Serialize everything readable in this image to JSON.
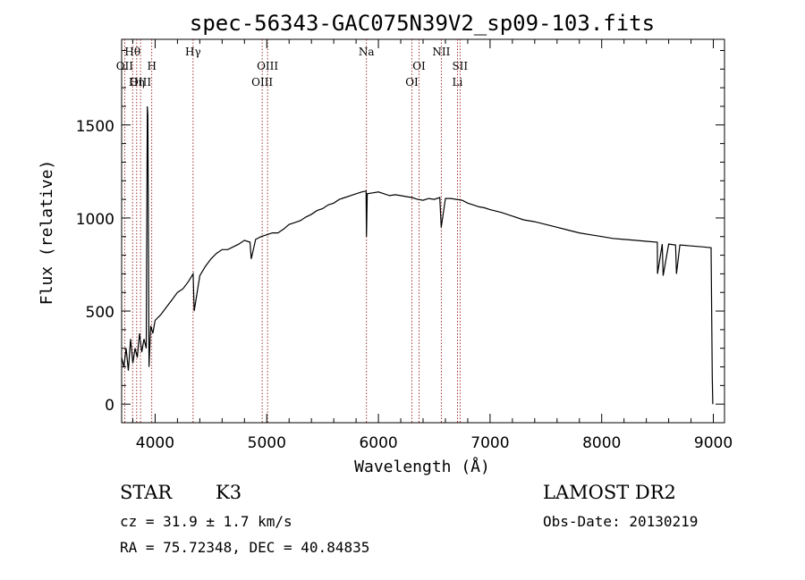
{
  "chart_data": {
    "type": "line",
    "title": "spec-56343-GAC075N39V2_sp09-103.fits",
    "xlabel": "Wavelength (Å)",
    "ylabel": "Flux (relative)",
    "xlim": [
      3700,
      9100
    ],
    "ylim": [
      -100,
      1960
    ],
    "x_ticks": [
      4000,
      5000,
      6000,
      7000,
      8000,
      9000
    ],
    "y_ticks": [
      0,
      500,
      1000,
      1500
    ],
    "grid": false,
    "series": [
      {
        "x": [
          3700,
          3720,
          3740,
          3760,
          3780,
          3800,
          3820,
          3840,
          3860,
          3880,
          3900,
          3920,
          3930,
          3935,
          3945,
          3960,
          3980,
          4000,
          4050,
          4100,
          4150,
          4200,
          4250,
          4300,
          4340,
          4350,
          4400,
          4450,
          4500,
          4550,
          4600,
          4650,
          4700,
          4750,
          4800,
          4850,
          4861,
          4900,
          4950,
          5000,
          5050,
          5100,
          5150,
          5200,
          5250,
          5300,
          5350,
          5400,
          5450,
          5500,
          5550,
          5600,
          5650,
          5700,
          5750,
          5800,
          5850,
          5890,
          5893,
          5900,
          5950,
          6000,
          6050,
          6100,
          6150,
          6200,
          6250,
          6300,
          6350,
          6400,
          6450,
          6500,
          6550,
          6563,
          6600,
          6650,
          6700,
          6750,
          6800,
          6850,
          6900,
          6950,
          7000,
          7100,
          7200,
          7300,
          7400,
          7500,
          7600,
          7700,
          7800,
          7900,
          8000,
          8100,
          8200,
          8300,
          8400,
          8498,
          8500,
          8542,
          8550,
          8600,
          8662,
          8670,
          8700,
          8800,
          8900,
          8980,
          8990,
          8995
        ],
        "y": [
          250,
          200,
          300,
          180,
          350,
          220,
          300,
          250,
          380,
          280,
          350,
          300,
          1600,
          1550,
          200,
          420,
          380,
          450,
          480,
          520,
          560,
          600,
          620,
          660,
          700,
          500,
          690,
          740,
          780,
          810,
          830,
          830,
          845,
          860,
          880,
          870,
          780,
          885,
          900,
          910,
          920,
          920,
          940,
          965,
          975,
          985,
          1005,
          1020,
          1040,
          1050,
          1070,
          1080,
          1100,
          1110,
          1120,
          1130,
          1140,
          1145,
          900,
          1130,
          1135,
          1140,
          1130,
          1120,
          1125,
          1120,
          1115,
          1110,
          1100,
          1095,
          1105,
          1100,
          1110,
          950,
          1105,
          1105,
          1100,
          1095,
          1080,
          1070,
          1060,
          1055,
          1045,
          1030,
          1010,
          990,
          980,
          965,
          950,
          935,
          920,
          910,
          900,
          890,
          885,
          880,
          875,
          870,
          700,
          860,
          690,
          860,
          855,
          700,
          855,
          850,
          845,
          840,
          150,
          0
        ]
      }
    ],
    "line_markers": [
      {
        "label": "Hθ",
        "x": 3798,
        "row": 0
      },
      {
        "label": "OII",
        "x": 3727,
        "row": 1
      },
      {
        "label": "OIII",
        "x": 3869,
        "row": 2
      },
      {
        "label": "Hη",
        "x": 3835,
        "row": 2
      },
      {
        "label": "H",
        "x": 3970,
        "row": 1
      },
      {
        "label": "Hγ",
        "x": 4340,
        "row": 0
      },
      {
        "label": "OIII",
        "x": 5007,
        "row": 1
      },
      {
        "label": "OIII",
        "x": 4959,
        "row": 2
      },
      {
        "label": "Na",
        "x": 5893,
        "row": 0
      },
      {
        "label": "OI",
        "x": 6364,
        "row": 1
      },
      {
        "label": "OI",
        "x": 6300,
        "row": 2
      },
      {
        "label": "NII",
        "x": 6563,
        "row": 0
      },
      {
        "label": "SII",
        "x": 6731,
        "row": 1
      },
      {
        "label": "Li",
        "x": 6708,
        "row": 2
      }
    ]
  },
  "info": {
    "class": "STAR",
    "subclass": "K3",
    "survey": "LAMOST DR2",
    "redshift": "cz = 31.9 ± 1.7 km/s",
    "obs_date": "Obs-Date: 20130219",
    "coords": "RA =  75.72348, DEC =  40.84835"
  }
}
